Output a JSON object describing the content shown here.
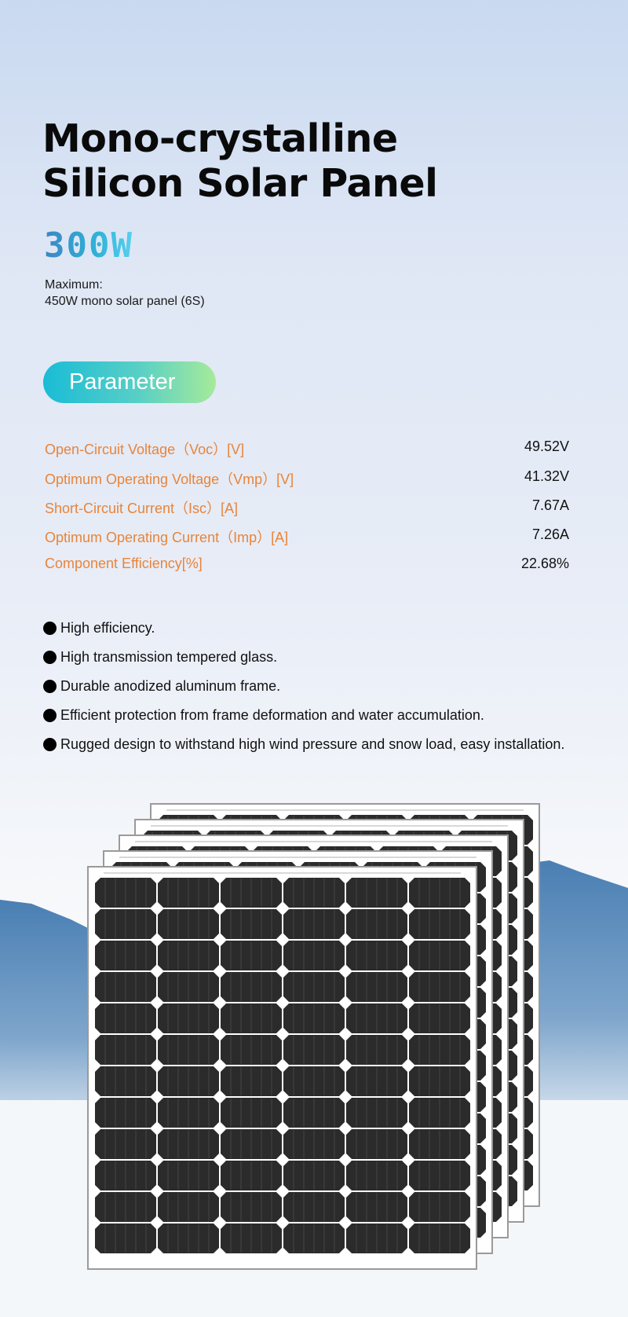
{
  "header": {
    "title_line1": "Mono-crystalline",
    "title_line2": "Silicon Solar Panel",
    "power": "300W",
    "max_label": "Maximum:",
    "max_value": "450W mono solar panel (6S)"
  },
  "parameter_button": "Parameter",
  "parameters": [
    {
      "label": "Open-Circuit Voltage（Voc）[V]",
      "value": "49.52V"
    },
    {
      "label": "Optimum Operating Voltage（Vmp）[V]",
      "value": "41.32V"
    },
    {
      "label": "Short-Circuit Current（Isc）[A]",
      "value": "7.67A"
    },
    {
      "label": "Optimum Operating Current（Imp）[A]",
      "value": "7.26A"
    },
    {
      "label": "Component Efficiency[%]",
      "value": "22.68%"
    }
  ],
  "features": [
    "High efficiency.",
    "High transmission tempered glass.",
    "Durable anodized aluminum frame.",
    "Efficient protection from frame deformation and water accumulation.",
    "Rugged design to withstand high wind pressure and snow load, easy installation."
  ],
  "colors": {
    "param_label": "#e8843a",
    "pill_start": "#19bcd6",
    "pill_end": "#a6ea9a",
    "power_text": "#2fb3d8"
  }
}
